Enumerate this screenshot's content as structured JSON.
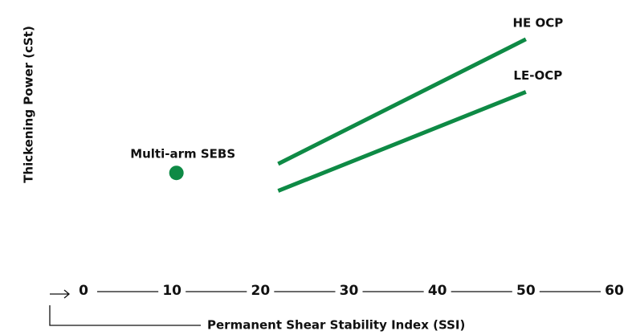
{
  "chart_data": {
    "type": "line",
    "x_label": "Permanent Shear Stability Index (SSI)",
    "y_label": "Thickening Power (cSt)",
    "xlim": [
      0,
      60
    ],
    "xticks": [
      0,
      10,
      20,
      30,
      40,
      50,
      60
    ],
    "ylim": [
      0,
      100
    ],
    "series": [
      {
        "name": "HE OCP",
        "color": "#0e8a45",
        "x": [
          22,
          50
        ],
        "values": [
          42.5,
          91
        ]
      },
      {
        "name": "LE-OCP",
        "color": "#0e8a45",
        "x": [
          22,
          50
        ],
        "values": [
          32,
          70.5
        ]
      }
    ],
    "points": [
      {
        "name": "Multi-arm SEBS",
        "color": "#0e8a45",
        "x": 10.5,
        "value": 39
      }
    ]
  }
}
